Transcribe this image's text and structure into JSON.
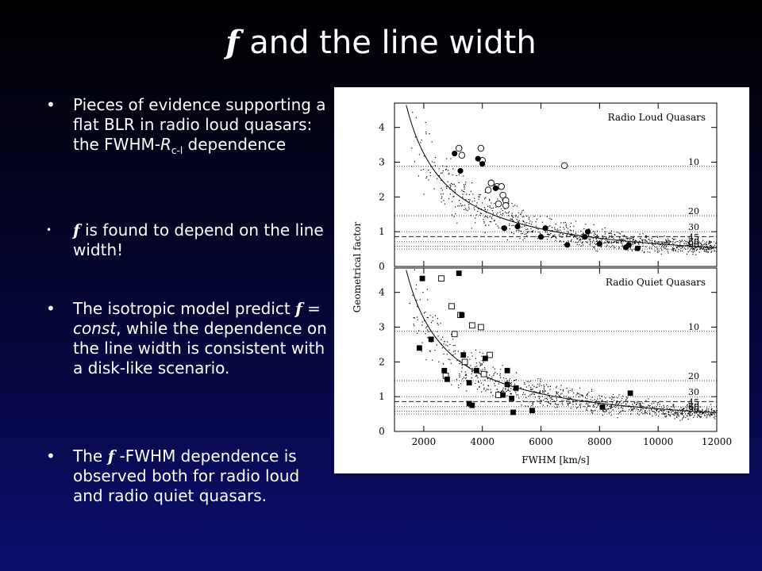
{
  "slide": {
    "title_symbol": "f",
    "title_rest": " and the line width",
    "bullets": [
      {
        "pre": "Pieces of evidence supporting a flat BLR in radio loud quasars: the FWHM-",
        "r": "R",
        "sub": "c-l",
        "post": " dependence"
      },
      {
        "sym": "f",
        "post": " is found to depend on the line width!"
      },
      {
        "pre": "The isotropic model predict ",
        "sym": "f",
        "eq": " = ",
        "const": "const",
        "post": ", while the dependence on the line width is consistent with a disk-like scenario."
      },
      {
        "pre": "The ",
        "sym": "f",
        "post": " -FWHM dependence is observed both for radio loud and radio quiet quasars."
      }
    ],
    "bullet_char": "•"
  },
  "chart_data": [
    {
      "type": "scatter",
      "title": "Radio Loud Quasars",
      "xlabel": "FWHM [km/s]",
      "ylabel": "Geometrical factor",
      "xlim": [
        1000,
        12000
      ],
      "ylim": [
        0,
        4.7
      ],
      "xticks": [
        2000,
        4000,
        6000,
        8000,
        10000,
        12000
      ],
      "yticks": [
        0,
        1,
        2,
        3,
        4
      ],
      "reference_lines": [
        {
          "label": "10",
          "y": 2.88
        },
        {
          "label": "20",
          "y": 1.46
        },
        {
          "label": "30",
          "y": 1.0
        },
        {
          "label": "45",
          "y": 0.71
        },
        {
          "label": "60",
          "y": 0.58
        },
        {
          "label": "90",
          "y": 0.5
        }
      ],
      "dashed_line_y": 0.86,
      "fit_curve": {
        "form": "a/x",
        "a": 6500
      },
      "series": [
        {
          "marker": "open-circle",
          "points": [
            [
              3200,
              3.4
            ],
            [
              3300,
              3.2
            ],
            [
              3950,
              3.4
            ],
            [
              4000,
              3.05
            ],
            [
              4200,
              2.2
            ],
            [
              4300,
              2.4
            ],
            [
              4500,
              2.3
            ],
            [
              4650,
              2.3
            ],
            [
              4700,
              2.05
            ],
            [
              4800,
              1.9
            ],
            [
              4550,
              1.8
            ],
            [
              4800,
              1.75
            ],
            [
              6800,
              2.9
            ]
          ]
        },
        {
          "marker": "filled-circle",
          "points": [
            [
              3050,
              3.25
            ],
            [
              3250,
              2.75
            ],
            [
              3850,
              3.1
            ],
            [
              4000,
              2.95
            ],
            [
              4450,
              2.25
            ],
            [
              4750,
              1.1
            ],
            [
              5200,
              1.15
            ],
            [
              6150,
              1.1
            ],
            [
              6000,
              0.85
            ],
            [
              6900,
              0.62
            ],
            [
              7500,
              0.85
            ],
            [
              7600,
              1.0
            ],
            [
              8000,
              0.65
            ],
            [
              8900,
              0.55
            ],
            [
              9000,
              0.62
            ],
            [
              9300,
              0.52
            ]
          ]
        }
      ]
    },
    {
      "type": "scatter",
      "title": "Radio Quiet Quasars",
      "xlabel": "FWHM [km/s]",
      "ylabel": "Geometrical factor",
      "xlim": [
        1000,
        12000
      ],
      "ylim": [
        0,
        4.7
      ],
      "xticks": [
        2000,
        4000,
        6000,
        8000,
        10000,
        12000
      ],
      "yticks": [
        0,
        1,
        2,
        3,
        4
      ],
      "reference_lines": [
        {
          "label": "10",
          "y": 2.88
        },
        {
          "label": "20",
          "y": 1.46
        },
        {
          "label": "30",
          "y": 1.0
        },
        {
          "label": "45",
          "y": 0.71
        },
        {
          "label": "60",
          "y": 0.58
        },
        {
          "label": "90",
          "y": 0.5
        }
      ],
      "dashed_line_y": 0.86,
      "fit_curve": {
        "form": "a/x",
        "a": 6500
      },
      "series": [
        {
          "marker": "open-square",
          "points": [
            [
              2600,
              4.4
            ],
            [
              2950,
              3.6
            ],
            [
              3250,
              3.35
            ],
            [
              3050,
              2.8
            ],
            [
              3400,
              2.0
            ],
            [
              3650,
              3.05
            ],
            [
              3950,
              3.0
            ],
            [
              4250,
              2.2
            ],
            [
              4050,
              1.65
            ],
            [
              2750,
              1.6
            ],
            [
              4550,
              1.05
            ]
          ]
        },
        {
          "marker": "filled-square",
          "points": [
            [
              1950,
              4.4
            ],
            [
              3200,
              4.55
            ],
            [
              3300,
              3.35
            ],
            [
              1850,
              2.4
            ],
            [
              2250,
              2.65
            ],
            [
              2700,
              1.75
            ],
            [
              2800,
              1.5
            ],
            [
              3350,
              2.2
            ],
            [
              3550,
              1.4
            ],
            [
              3550,
              0.8
            ],
            [
              3650,
              0.75
            ],
            [
              3800,
              1.75
            ],
            [
              4100,
              2.1
            ],
            [
              4850,
              1.75
            ],
            [
              4700,
              1.05
            ],
            [
              4850,
              1.35
            ],
            [
              5000,
              0.95
            ],
            [
              5150,
              1.25
            ],
            [
              5050,
              0.55
            ],
            [
              5700,
              0.6
            ],
            [
              8100,
              0.7
            ],
            [
              9050,
              1.1
            ]
          ]
        }
      ]
    }
  ]
}
